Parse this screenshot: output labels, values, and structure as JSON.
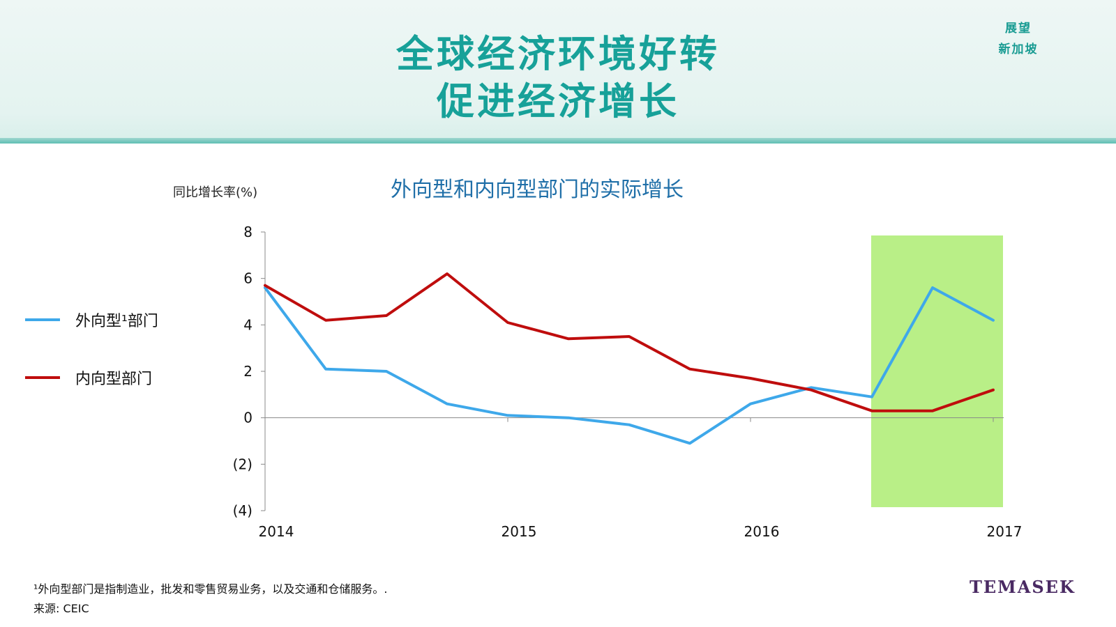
{
  "header": {
    "title_line1": "全球经济环境好转",
    "title_line2": "促进经济增长",
    "corner_line1": "展望",
    "corner_line2": "新加坡"
  },
  "chart_data": {
    "type": "line",
    "title": "外向型和内向型部门的实际增长",
    "ylabel": "同比增长率(%)",
    "xlabel": "",
    "ylim": [
      -4,
      8
    ],
    "yticks": [
      8,
      6,
      4,
      2,
      0,
      -2,
      -4
    ],
    "ytick_labels": [
      "8",
      "6",
      "4",
      "2",
      "0",
      "(2)",
      "(4)"
    ],
    "x_year_labels": [
      "2014",
      "2015",
      "2016",
      "2017"
    ],
    "x": [
      "2014Q1",
      "2014Q2",
      "2014Q3",
      "2014Q4",
      "2015Q1",
      "2015Q2",
      "2015Q3",
      "2015Q4",
      "2016Q1",
      "2016Q2",
      "2016Q3",
      "2016Q4",
      "2017Q1"
    ],
    "highlight": {
      "from": "2016Q3",
      "to": "2017Q1",
      "color": "#b9ef87"
    },
    "series": [
      {
        "name": "外向型¹部门",
        "color": "#3ea8ea",
        "values": [
          5.6,
          2.1,
          2.0,
          0.6,
          0.1,
          0.0,
          -0.3,
          -1.1,
          0.6,
          1.3,
          0.9,
          5.6,
          4.2
        ]
      },
      {
        "name": "内向型部门",
        "color": "#bf0d0d",
        "values": [
          5.7,
          4.2,
          4.4,
          6.2,
          4.1,
          3.4,
          3.5,
          2.1,
          1.7,
          1.2,
          0.3,
          0.3,
          1.2
        ]
      }
    ],
    "legend": "left"
  },
  "footer": {
    "footnote": "¹外向型部门是指制造业，批发和零售贸易业务，以及交通和仓储服务。.",
    "source": "来源: CEIC",
    "logo": "TEMASEK"
  }
}
